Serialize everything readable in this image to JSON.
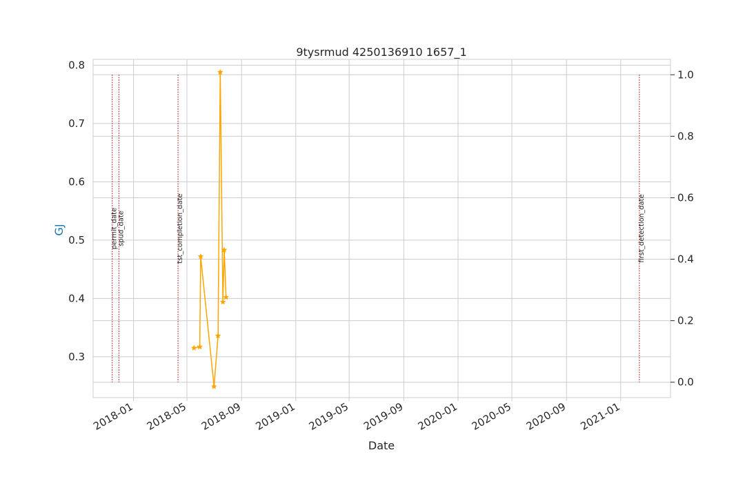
{
  "chart_data": {
    "type": "line",
    "title": "9tysrmud 4250136910 1657_1",
    "xlabel": "Date",
    "ylabel": "GJ",
    "xlim": [
      "2017-10-02",
      "2021-04-23"
    ],
    "ylim_left": [
      0.23,
      0.81
    ],
    "ylim_right": [
      -0.05,
      1.05
    ],
    "x_tick_labels": [
      "2018-01",
      "2018-05",
      "2018-09",
      "2019-01",
      "2019-05",
      "2019-09",
      "2020-01",
      "2020-05",
      "2020-09",
      "2021-01"
    ],
    "x_tick_dates": [
      "2018-01-01",
      "2018-05-01",
      "2018-09-01",
      "2019-01-01",
      "2019-05-01",
      "2019-09-01",
      "2020-01-01",
      "2020-05-01",
      "2020-09-01",
      "2021-01-01"
    ],
    "y_ticks_left": [
      0.3,
      0.4,
      0.5,
      0.6,
      0.7,
      0.8
    ],
    "y_ticks_left_labels": [
      "0.3",
      "0.4",
      "0.5",
      "0.6",
      "0.7",
      "0.8"
    ],
    "y_ticks_right": [
      0.0,
      0.2,
      0.4,
      0.6,
      0.8,
      1.0
    ],
    "y_ticks_right_labels": [
      "0.0",
      "0.2",
      "0.4",
      "0.6",
      "0.8",
      "1.0"
    ],
    "grid": true,
    "series": [
      {
        "color": "#ffa500",
        "marker": "star",
        "x": [
          "2018-05-17",
          "2018-05-30",
          "2018-06-01",
          "2018-07-01",
          "2018-07-10",
          "2018-07-15",
          "2018-07-21",
          "2018-07-24",
          "2018-07-28"
        ],
        "y": [
          0.315,
          0.317,
          0.472,
          0.249,
          0.336,
          0.788,
          0.394,
          0.483,
          0.402
        ]
      }
    ],
    "event_lines": [
      {
        "label": "permit_date",
        "date": "2017-11-14",
        "color": "#b22222"
      },
      {
        "label": "spud_date",
        "date": "2017-11-29",
        "color": "#b22222"
      },
      {
        "label": "tst_completion_date",
        "date": "2018-04-11",
        "color": "#b22222"
      },
      {
        "label": "first_detection_date",
        "date": "2021-02-12",
        "color": "#b22222"
      }
    ],
    "colors": {
      "ylabel": "#1f77b4",
      "grid": "#cccccc",
      "spine": "#cccccc",
      "text": "#262626"
    }
  }
}
